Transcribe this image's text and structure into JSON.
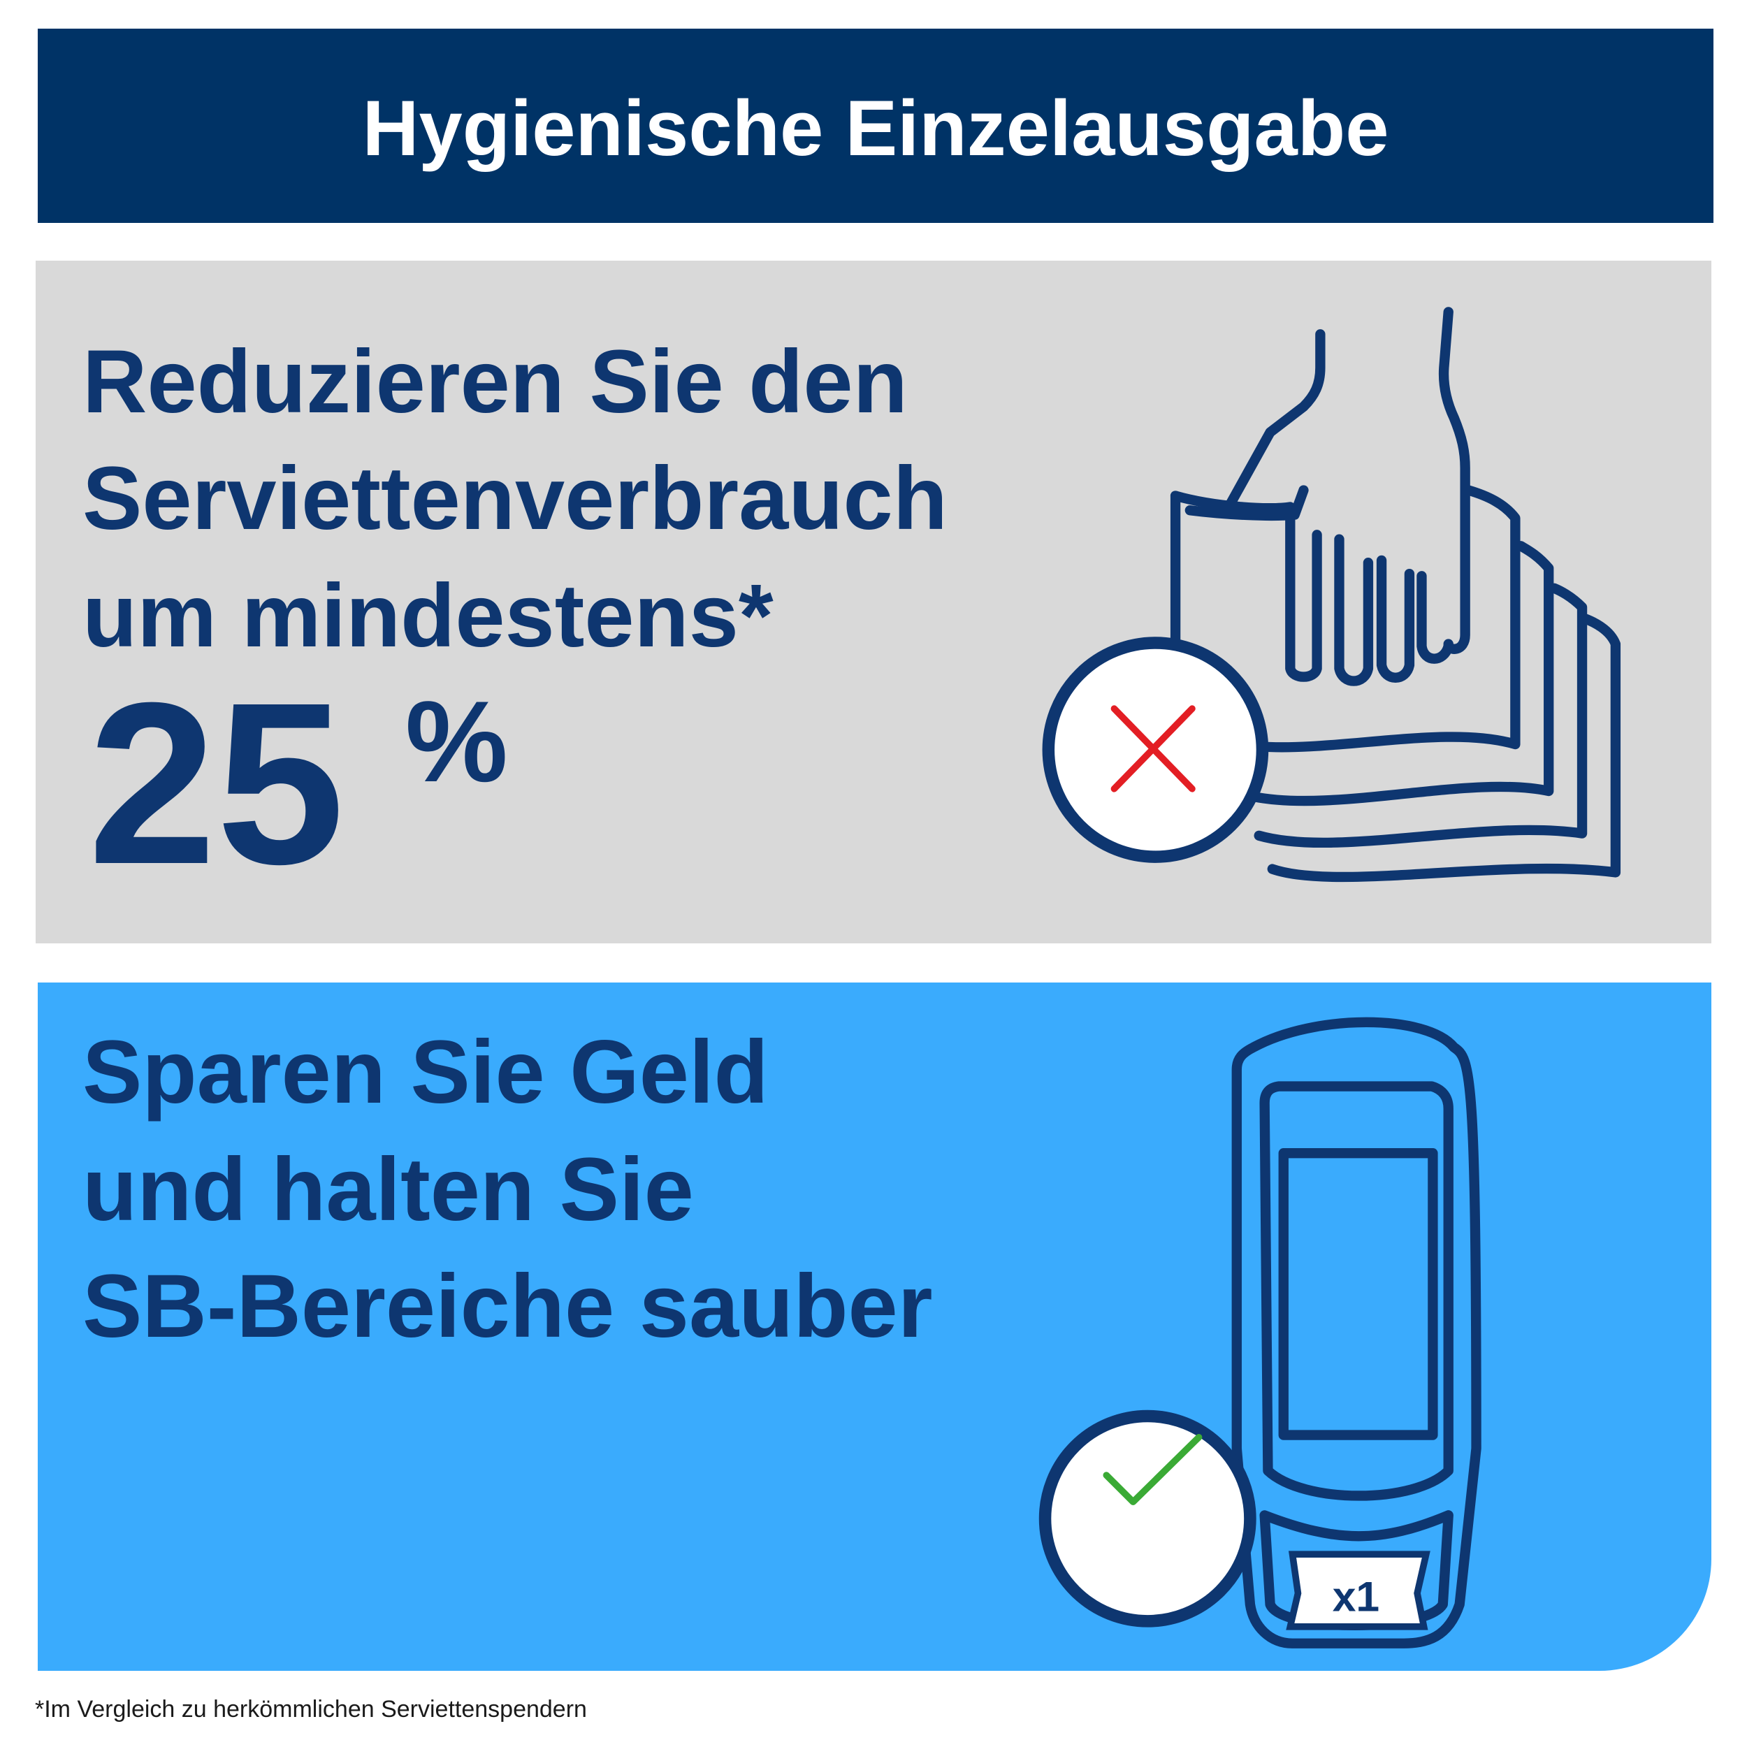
{
  "header": {
    "title": "Hygienische Einzelausgabe"
  },
  "panels": [
    {
      "lines": [
        "Reduzieren Sie den",
        "Serviettenverbrauch",
        "um mindestens*"
      ],
      "number": "25",
      "unit": "%"
    },
    {
      "lines": [
        "Sparen Sie Geld",
        "und halten Sie",
        "SB-Bereiche sauber"
      ],
      "badge": "x1"
    }
  ],
  "footnote": "*Im Vergleich zu herkömmlichen Serviettenspendern"
}
